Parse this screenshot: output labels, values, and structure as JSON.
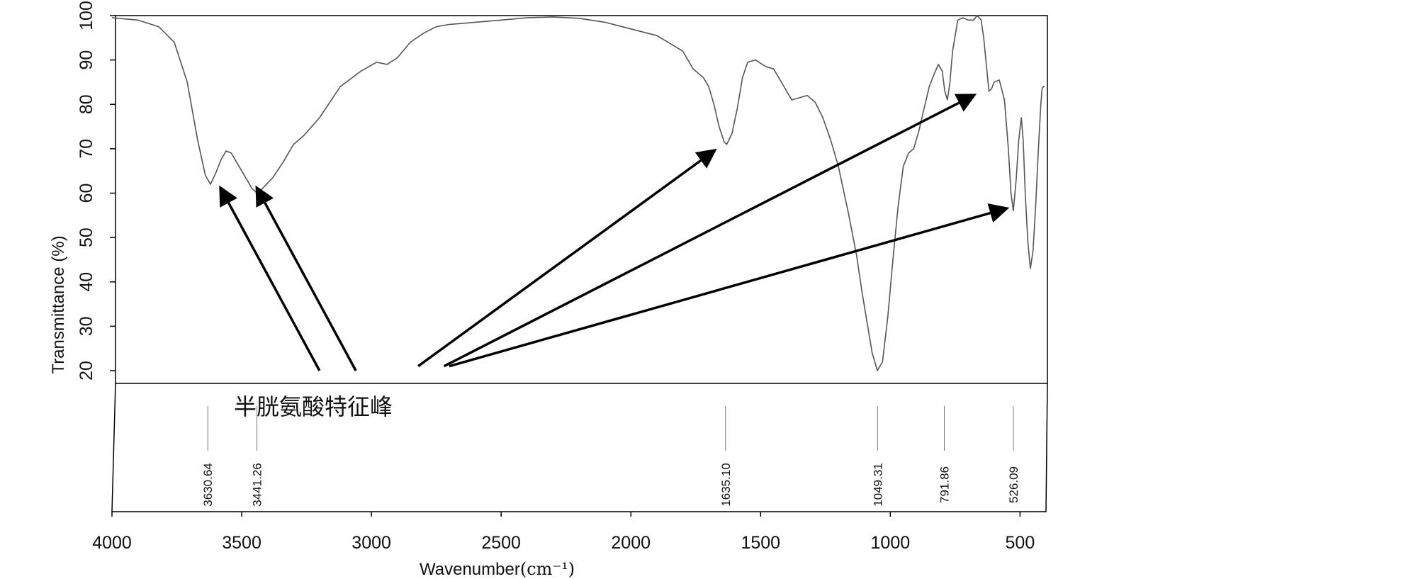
{
  "chart_data": {
    "type": "line",
    "title": "",
    "xlabel": "Wavenumber",
    "xlabel_unit": "(cm⁻¹)",
    "ylabel": "Transmittance (%)",
    "xlim": [
      4000,
      400
    ],
    "x_reversed": true,
    "ylim": [
      20,
      100
    ],
    "x_ticks": [
      4000,
      3500,
      3000,
      2500,
      2000,
      1500,
      1000,
      500
    ],
    "y_ticks": [
      20,
      30,
      40,
      50,
      60,
      70,
      80,
      90,
      100
    ],
    "grid": false,
    "legend": "none",
    "series": [
      {
        "color": "#555555",
        "x": [
          4000,
          3900,
          3820,
          3760,
          3710,
          3670,
          3640,
          3620,
          3600,
          3580,
          3560,
          3540,
          3500,
          3460,
          3440,
          3420,
          3380,
          3340,
          3300,
          3260,
          3200,
          3120,
          3040,
          2980,
          2940,
          2900,
          2850,
          2800,
          2750,
          2700,
          2600,
          2500,
          2400,
          2300,
          2200,
          2100,
          2000,
          1900,
          1800,
          1760,
          1720,
          1700,
          1680,
          1660,
          1640,
          1630,
          1610,
          1590,
          1570,
          1550,
          1520,
          1480,
          1450,
          1420,
          1380,
          1350,
          1320,
          1290,
          1260,
          1230,
          1200,
          1160,
          1130,
          1110,
          1090,
          1070,
          1050,
          1030,
          1010,
          990,
          970,
          950,
          930,
          910,
          890,
          870,
          850,
          830,
          815,
          800,
          790,
          780,
          770,
          760,
          740,
          720,
          700,
          680,
          665,
          650,
          640,
          630,
          620,
          610,
          600,
          580,
          560,
          545,
          535,
          526,
          515,
          505,
          495,
          488,
          480,
          470,
          460,
          450,
          440,
          430,
          420,
          415,
          410,
          405
        ],
        "values": [
          99.5,
          99.0,
          97.5,
          94.0,
          85.0,
          72.0,
          64.0,
          62.0,
          64.5,
          67.5,
          69.5,
          69.0,
          65.0,
          61.0,
          60.0,
          61.0,
          63.5,
          67.0,
          71.0,
          73.0,
          77.0,
          84.0,
          87.5,
          89.5,
          89.0,
          90.5,
          94.0,
          96.0,
          97.5,
          98.0,
          98.5,
          99.0,
          99.5,
          99.7,
          99.4,
          98.5,
          97.0,
          95.5,
          92.0,
          88.0,
          86.0,
          84.0,
          80.0,
          75.0,
          71.5,
          71.0,
          73.5,
          79.0,
          86.0,
          89.5,
          90.0,
          88.5,
          88.0,
          85.0,
          81.0,
          81.5,
          82.0,
          80.5,
          77.0,
          72.0,
          66.0,
          55.0,
          46.0,
          38.0,
          31.0,
          24.0,
          20.0,
          22.0,
          32.0,
          45.0,
          57.0,
          66.0,
          69.0,
          70.0,
          74.0,
          79.0,
          84.0,
          87.0,
          89.0,
          87.5,
          83.0,
          81.0,
          85.0,
          92.0,
          99.0,
          99.5,
          99.0,
          99.0,
          100.0,
          99.0,
          95.0,
          89.0,
          83.0,
          83.5,
          85.0,
          85.5,
          81.0,
          70.0,
          60.0,
          56.0,
          63.0,
          72.0,
          77.0,
          72.0,
          60.0,
          49.0,
          43.0,
          47.0,
          57.0,
          69.0,
          80.0,
          83.5,
          84.0,
          84.0
        ]
      }
    ],
    "peak_labels": [
      {
        "x": 3630.64,
        "label": "3630.64"
      },
      {
        "x": 3441.26,
        "label": "3441.26"
      },
      {
        "x": 1635.1,
        "label": "1635.10"
      },
      {
        "x": 1049.31,
        "label": "1049.31"
      },
      {
        "x": 791.86,
        "label": "791.86"
      },
      {
        "x": 526.09,
        "label": "526.09"
      }
    ],
    "annotation": {
      "text": "半胱氨酸特征峰",
      "arrows": [
        {
          "from_x": 3200,
          "from_y": 20,
          "to_x": 3580,
          "to_y": 61
        },
        {
          "from_x": 3060,
          "from_y": 20,
          "to_x": 3440,
          "to_y": 61
        },
        {
          "from_x": 2820,
          "from_y": 21,
          "to_x": 1680,
          "to_y": 69.5
        },
        {
          "from_x": 2720,
          "from_y": 21,
          "to_x": 680,
          "to_y": 82
        },
        {
          "from_x": 2700,
          "from_y": 21,
          "to_x": 555,
          "to_y": 56.5
        }
      ]
    }
  }
}
